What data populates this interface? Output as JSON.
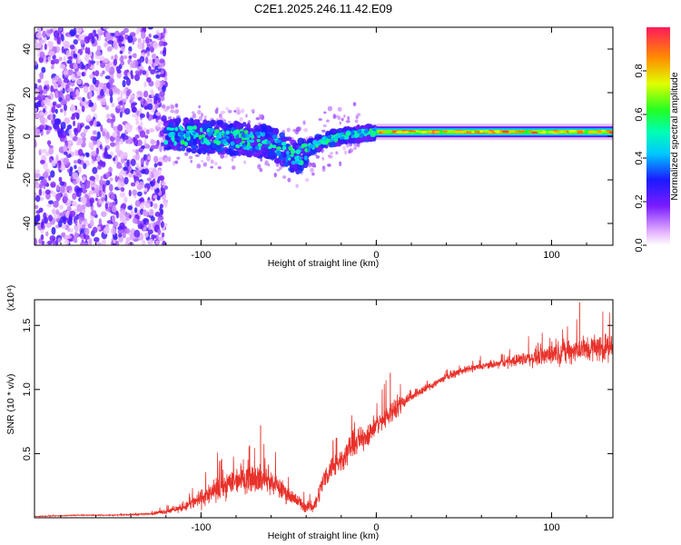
{
  "title": "C2E1.2025.246.11.42.E09",
  "colors": {
    "snr_line": "#e8312a",
    "frame": "#000000",
    "spectrogram_background": "#ffffff"
  },
  "chart_data": [
    {
      "type": "heatmap",
      "name": "spectrogram",
      "xlabel": "Height of straight line (km)",
      "ylabel": "Frequency (Hz)",
      "xlim": [
        -195,
        135
      ],
      "ylim": [
        -50,
        50
      ],
      "x_ticks": [
        {
          "value": -100,
          "label": "-100"
        },
        {
          "value": 0,
          "label": "0"
        },
        {
          "value": 100,
          "label": "100"
        }
      ],
      "y_ticks": [
        {
          "value": -40,
          "label": "-40"
        },
        {
          "value": -20,
          "label": "-20"
        },
        {
          "value": 0,
          "label": "0"
        },
        {
          "value": 20,
          "label": "20"
        },
        {
          "value": 40,
          "label": "40"
        }
      ],
      "features": [
        {
          "description": "noise region",
          "x_range": [
            -195,
            -120
          ],
          "frequency_range": [
            -50,
            50
          ],
          "amplitude": "0.0-0.2"
        },
        {
          "description": "descending trace",
          "x": [
            -120,
            -100,
            -80,
            -60,
            -45,
            -38,
            -30,
            -20,
            -10,
            0
          ],
          "frequency": [
            1,
            0,
            -1,
            -3,
            -10,
            -5,
            -2,
            0,
            1,
            2
          ],
          "amplitude": "0.3-0.5"
        },
        {
          "description": "steady carrier",
          "x_range": [
            0,
            135
          ],
          "frequency": 2,
          "amplitude": "0.5-0.9"
        }
      ],
      "colorbar": {
        "label": "Normalized spectral amplitude",
        "range": [
          0,
          1
        ],
        "ticks": [
          {
            "value": 0.0,
            "label": "0.0"
          },
          {
            "value": 0.2,
            "label": "0.2"
          },
          {
            "value": 0.4,
            "label": "0.4"
          },
          {
            "value": 0.6,
            "label": "0.6"
          },
          {
            "value": 0.8,
            "label": "0.8"
          }
        ]
      }
    },
    {
      "type": "line",
      "name": "snr",
      "xlabel": "Height of straight line (km)",
      "ylabel": "SNR (10 * v/v)",
      "y_multiplier": "(x10⁴)",
      "xlim": [
        -195,
        135
      ],
      "ylim": [
        0,
        1.7
      ],
      "x_ticks": [
        {
          "value": -100,
          "label": "-100"
        },
        {
          "value": 0,
          "label": "0"
        },
        {
          "value": 100,
          "label": "100"
        }
      ],
      "y_ticks": [
        {
          "value": 0.5,
          "label": "0.5"
        },
        {
          "value": 1.0,
          "label": "1.0"
        },
        {
          "value": 1.5,
          "label": "1.5"
        }
      ],
      "series": [
        {
          "name": "SNR",
          "x": [
            -195,
            -170,
            -150,
            -130,
            -120,
            -110,
            -100,
            -90,
            -80,
            -70,
            -60,
            -50,
            -40,
            -35,
            -30,
            -25,
            -20,
            -15,
            -10,
            -5,
            0,
            5,
            10,
            15,
            20,
            30,
            40,
            50,
            60,
            70,
            80,
            90,
            100,
            110,
            120,
            130,
            135
          ],
          "y": [
            0.01,
            0.02,
            0.02,
            0.03,
            0.05,
            0.08,
            0.15,
            0.22,
            0.3,
            0.32,
            0.28,
            0.18,
            0.08,
            0.1,
            0.3,
            0.4,
            0.45,
            0.55,
            0.6,
            0.65,
            0.72,
            0.78,
            0.85,
            0.9,
            0.95,
            1.02,
            1.1,
            1.15,
            1.18,
            1.2,
            1.23,
            1.25,
            1.28,
            1.3,
            1.32,
            1.33,
            1.33
          ],
          "noise": [
            0.005,
            0.005,
            0.005,
            0.01,
            0.03,
            0.05,
            0.1,
            0.14,
            0.17,
            0.17,
            0.14,
            0.1,
            0.06,
            0.08,
            0.12,
            0.13,
            0.14,
            0.15,
            0.15,
            0.14,
            0.12,
            0.13,
            0.15,
            0.09,
            0.06,
            0.05,
            0.04,
            0.04,
            0.04,
            0.05,
            0.07,
            0.1,
            0.13,
            0.14,
            0.16,
            0.16,
            0.14
          ],
          "spikes": [
            {
              "x": -66,
              "y": 0.72
            },
            {
              "x": 8,
              "y": 1.13
            },
            {
              "x": 116,
              "y": 1.68
            }
          ]
        }
      ]
    }
  ]
}
